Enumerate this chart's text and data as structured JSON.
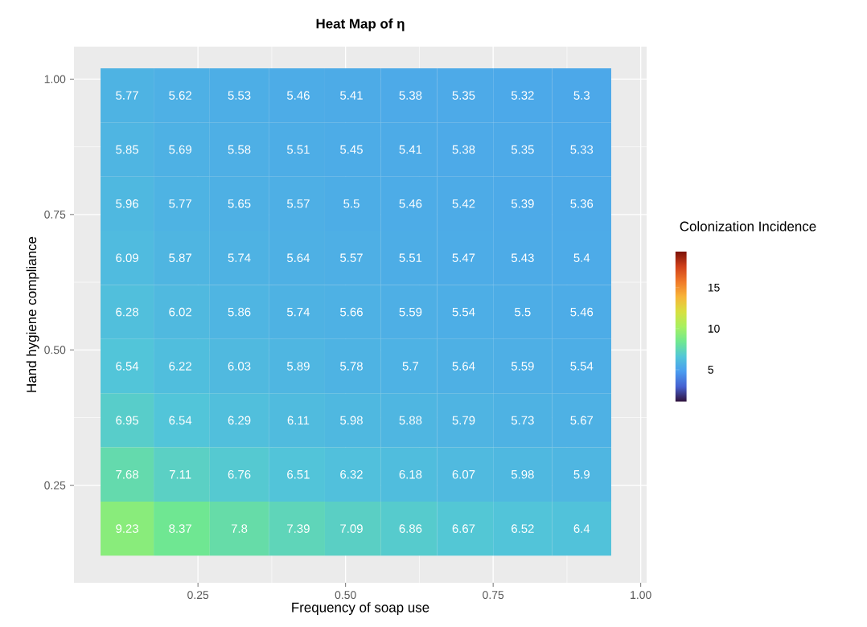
{
  "chart_data": {
    "type": "heatmap",
    "title": "Heat Map of η",
    "xlabel": "Frequency of soap use",
    "ylabel": "Hand hygiene compliance",
    "clabel": "Colonization Incidence",
    "x": [
      0.13,
      0.22,
      0.32,
      0.42,
      0.51,
      0.61,
      0.7,
      0.8,
      0.9
    ],
    "y": [
      0.97,
      0.87,
      0.77,
      0.67,
      0.57,
      0.47,
      0.37,
      0.27,
      0.17
    ],
    "cells": [
      [
        5.77,
        5.62,
        5.53,
        5.46,
        5.41,
        5.38,
        5.35,
        5.32,
        5.3
      ],
      [
        5.85,
        5.69,
        5.58,
        5.51,
        5.45,
        5.41,
        5.38,
        5.35,
        5.33
      ],
      [
        5.96,
        5.77,
        5.65,
        5.57,
        5.5,
        5.46,
        5.42,
        5.39,
        5.36
      ],
      [
        6.09,
        5.87,
        5.74,
        5.64,
        5.57,
        5.51,
        5.47,
        5.43,
        5.4
      ],
      [
        6.28,
        6.02,
        5.86,
        5.74,
        5.66,
        5.59,
        5.54,
        5.5,
        5.46
      ],
      [
        6.54,
        6.22,
        6.03,
        5.89,
        5.78,
        5.7,
        5.64,
        5.59,
        5.54
      ],
      [
        6.95,
        6.54,
        6.29,
        6.11,
        5.98,
        5.88,
        5.79,
        5.73,
        5.67
      ],
      [
        7.68,
        7.11,
        6.76,
        6.51,
        6.32,
        6.18,
        6.07,
        5.98,
        5.9
      ],
      [
        9.23,
        8.37,
        7.8,
        7.39,
        7.09,
        6.86,
        6.67,
        6.52,
        6.4
      ]
    ],
    "data_labels": true,
    "xlim": [
      0.04,
      1.01
    ],
    "ylim": [
      0.07,
      1.06
    ],
    "xticks": [
      {
        "value": 0.25,
        "label": "0.25"
      },
      {
        "value": 0.5,
        "label": "0.50"
      },
      {
        "value": 0.75,
        "label": "0.75"
      },
      {
        "value": 1.0,
        "label": "1.00"
      }
    ],
    "yticks": [
      {
        "value": 0.25,
        "label": "0.25"
      },
      {
        "value": 0.5,
        "label": "0.50"
      },
      {
        "value": 0.75,
        "label": "0.75"
      },
      {
        "value": 1.0,
        "label": "1.00"
      }
    ],
    "clim": [
      1.1,
      19.4
    ],
    "cticks": [
      5,
      10,
      15
    ],
    "colors": [
      "#30123b",
      "#4660d0",
      "#4a9cf0",
      "#52c6d8",
      "#70e890",
      "#a8f060",
      "#d8e040",
      "#f8b438",
      "#f07828",
      "#d0401a",
      "#7a1008"
    ],
    "grid": true
  }
}
